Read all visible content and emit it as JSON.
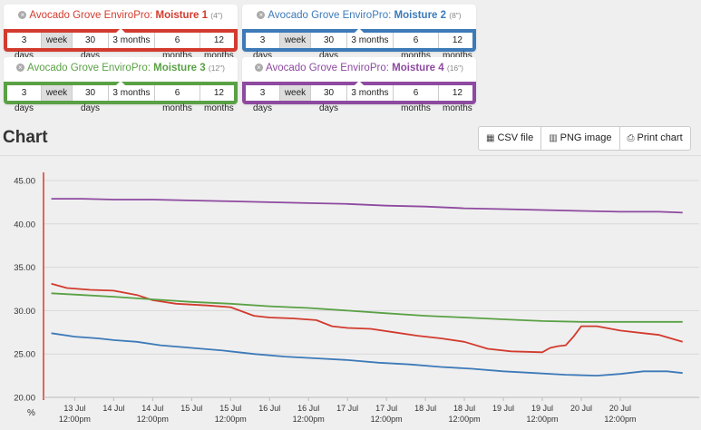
{
  "panels": [
    {
      "name": "Avocado Grove EnviroPro:",
      "sensor": "Moisture 1",
      "depth": "(4\")",
      "color": "#d23b2e",
      "ranges": [
        "3 days",
        "week",
        "30 days",
        "3 months",
        "6 months",
        "12 months"
      ],
      "active": 1
    },
    {
      "name": "Avocado Grove EnviroPro:",
      "sensor": "Moisture 2",
      "depth": "(8\")",
      "color": "#3d7ab8",
      "ranges": [
        "3 days",
        "week",
        "30 days",
        "3 months",
        "6 months",
        "12 months"
      ],
      "active": 1
    },
    {
      "name": "Avocado Grove EnviroPro:",
      "sensor": "Moisture 3",
      "depth": "(12\")",
      "color": "#5aa145",
      "ranges": [
        "3 days",
        "week",
        "30 days",
        "3 months",
        "6 months",
        "12 months"
      ],
      "active": 1
    },
    {
      "name": "Avocado Grove EnviroPro:",
      "sensor": "Moisture 4",
      "depth": "(16\")",
      "color": "#8e4aa0",
      "ranges": [
        "3 days",
        "week",
        "30 days",
        "3 months",
        "6 months",
        "12 months"
      ],
      "active": 1
    }
  ],
  "section_title": "Chart",
  "toolbar": {
    "csv": "CSV file",
    "png": "PNG image",
    "print": "Print chart"
  },
  "icons": {
    "csv": "table-icon",
    "png": "bar-chart-icon",
    "print": "printer-icon",
    "remove": "close-circle-icon"
  },
  "chart_data": {
    "type": "line",
    "ylabel": "%",
    "ylim": [
      20,
      45
    ],
    "yticks": [
      "20.00",
      "25.00",
      "30.00",
      "35.00",
      "40.00",
      "45.00"
    ],
    "grid": true,
    "x_ticks": [
      {
        "t": 13.5,
        "d": "13 Jul",
        "h": "12:00pm"
      },
      {
        "t": 14.0,
        "d": "14 Jul",
        "h": ""
      },
      {
        "t": 14.5,
        "d": "14 Jul",
        "h": "12:00pm"
      },
      {
        "t": 15.0,
        "d": "15 Jul",
        "h": ""
      },
      {
        "t": 15.5,
        "d": "15 Jul",
        "h": "12:00pm"
      },
      {
        "t": 16.0,
        "d": "16 Jul",
        "h": ""
      },
      {
        "t": 16.5,
        "d": "16 Jul",
        "h": "12:00pm"
      },
      {
        "t": 17.0,
        "d": "17 Jul",
        "h": ""
      },
      {
        "t": 17.5,
        "d": "17 Jul",
        "h": "12:00pm"
      },
      {
        "t": 18.0,
        "d": "18 Jul",
        "h": ""
      },
      {
        "t": 18.5,
        "d": "18 Jul",
        "h": "12:00pm"
      },
      {
        "t": 19.0,
        "d": "19 Jul",
        "h": ""
      },
      {
        "t": 19.5,
        "d": "19 Jul",
        "h": "12:00pm"
      },
      {
        "t": 20.0,
        "d": "20 Jul",
        "h": ""
      },
      {
        "t": 20.5,
        "d": "20 Jul",
        "h": "12:00pm"
      }
    ],
    "series": [
      {
        "name": "Moisture 1",
        "color": "#d23b2e",
        "points": [
          [
            13.2,
            33.1
          ],
          [
            13.4,
            32.6
          ],
          [
            13.7,
            32.4
          ],
          [
            14.0,
            32.3
          ],
          [
            14.3,
            31.8
          ],
          [
            14.5,
            31.2
          ],
          [
            14.8,
            30.8
          ],
          [
            15.2,
            30.6
          ],
          [
            15.5,
            30.4
          ],
          [
            15.8,
            29.4
          ],
          [
            16.0,
            29.2
          ],
          [
            16.3,
            29.1
          ],
          [
            16.6,
            28.9
          ],
          [
            16.8,
            28.2
          ],
          [
            17.0,
            28.0
          ],
          [
            17.3,
            27.9
          ],
          [
            17.6,
            27.5
          ],
          [
            17.9,
            27.1
          ],
          [
            18.2,
            26.8
          ],
          [
            18.5,
            26.4
          ],
          [
            18.8,
            25.6
          ],
          [
            19.1,
            25.3
          ],
          [
            19.5,
            25.2
          ],
          [
            19.6,
            25.7
          ],
          [
            19.7,
            25.9
          ],
          [
            19.8,
            26.0
          ],
          [
            19.9,
            27.0
          ],
          [
            20.0,
            28.2
          ],
          [
            20.2,
            28.2
          ],
          [
            20.5,
            27.7
          ],
          [
            20.8,
            27.4
          ],
          [
            21.0,
            27.2
          ],
          [
            21.3,
            26.4
          ]
        ]
      },
      {
        "name": "Moisture 2",
        "color": "#3d7ab8",
        "points": [
          [
            13.2,
            27.4
          ],
          [
            13.5,
            27.0
          ],
          [
            13.8,
            26.8
          ],
          [
            14.0,
            26.6
          ],
          [
            14.3,
            26.4
          ],
          [
            14.6,
            26.0
          ],
          [
            15.0,
            25.7
          ],
          [
            15.4,
            25.4
          ],
          [
            15.8,
            25.0
          ],
          [
            16.2,
            24.7
          ],
          [
            16.6,
            24.5
          ],
          [
            17.0,
            24.3
          ],
          [
            17.4,
            24.0
          ],
          [
            17.8,
            23.8
          ],
          [
            18.2,
            23.5
          ],
          [
            18.6,
            23.3
          ],
          [
            19.0,
            23.0
          ],
          [
            19.4,
            22.8
          ],
          [
            19.8,
            22.6
          ],
          [
            20.2,
            22.5
          ],
          [
            20.5,
            22.7
          ],
          [
            20.8,
            23.0
          ],
          [
            21.1,
            23.0
          ],
          [
            21.3,
            22.8
          ]
        ]
      },
      {
        "name": "Moisture 3",
        "color": "#5aa145",
        "points": [
          [
            13.2,
            32.0
          ],
          [
            13.6,
            31.8
          ],
          [
            14.0,
            31.6
          ],
          [
            14.5,
            31.3
          ],
          [
            15.0,
            31.0
          ],
          [
            15.5,
            30.8
          ],
          [
            16.0,
            30.5
          ],
          [
            16.5,
            30.3
          ],
          [
            17.0,
            30.0
          ],
          [
            17.5,
            29.7
          ],
          [
            18.0,
            29.4
          ],
          [
            18.5,
            29.2
          ],
          [
            19.0,
            29.0
          ],
          [
            19.5,
            28.8
          ],
          [
            20.0,
            28.7
          ],
          [
            20.5,
            28.7
          ],
          [
            21.0,
            28.7
          ],
          [
            21.3,
            28.7
          ]
        ]
      },
      {
        "name": "Moisture 4",
        "color": "#8e4aa0",
        "points": [
          [
            13.2,
            42.9
          ],
          [
            13.6,
            42.9
          ],
          [
            14.0,
            42.8
          ],
          [
            14.5,
            42.8
          ],
          [
            15.0,
            42.7
          ],
          [
            15.5,
            42.6
          ],
          [
            16.0,
            42.5
          ],
          [
            16.5,
            42.4
          ],
          [
            17.0,
            42.3
          ],
          [
            17.5,
            42.1
          ],
          [
            18.0,
            42.0
          ],
          [
            18.5,
            41.8
          ],
          [
            19.0,
            41.7
          ],
          [
            19.5,
            41.6
          ],
          [
            20.0,
            41.5
          ],
          [
            20.5,
            41.4
          ],
          [
            21.0,
            41.4
          ],
          [
            21.3,
            41.3
          ]
        ]
      }
    ]
  }
}
